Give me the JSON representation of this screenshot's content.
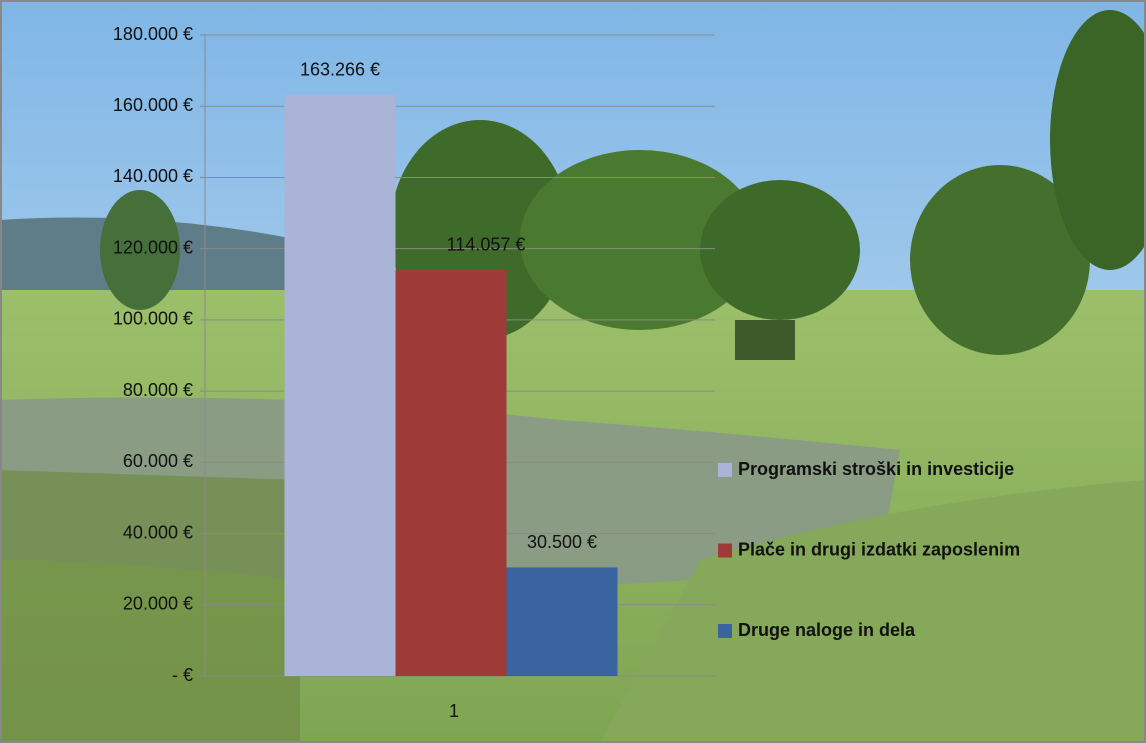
{
  "chart_data": {
    "type": "bar",
    "categories": [
      "1"
    ],
    "series": [
      {
        "name": "Programski stroški in investicije",
        "color": "#aab4d6",
        "values": [
          163266
        ],
        "value_labels": [
          "163.266 €"
        ]
      },
      {
        "name": "Plače in drugi izdatki zaposlenim",
        "color": "#9e3a38",
        "values": [
          114057
        ],
        "value_labels": [
          "114.057 €"
        ]
      },
      {
        "name": "Druge naloge in dela",
        "color": "#3a64a0",
        "values": [
          30500
        ],
        "value_labels": [
          "30.500 €"
        ]
      }
    ],
    "ylim": [
      0,
      180000
    ],
    "yticks": [
      {
        "value": 0,
        "label": "-   €"
      },
      {
        "value": 20000,
        "label": "20.000 €"
      },
      {
        "value": 40000,
        "label": "40.000 €"
      },
      {
        "value": 60000,
        "label": "60.000 €"
      },
      {
        "value": 80000,
        "label": "80.000 €"
      },
      {
        "value": 100000,
        "label": "100.000 €"
      },
      {
        "value": 120000,
        "label": "120.000 €"
      },
      {
        "value": 140000,
        "label": "140.000 €"
      },
      {
        "value": 160000,
        "label": "160.000 €"
      },
      {
        "value": 180000,
        "label": "180.000 €"
      }
    ],
    "grid": true,
    "legend": "right"
  }
}
